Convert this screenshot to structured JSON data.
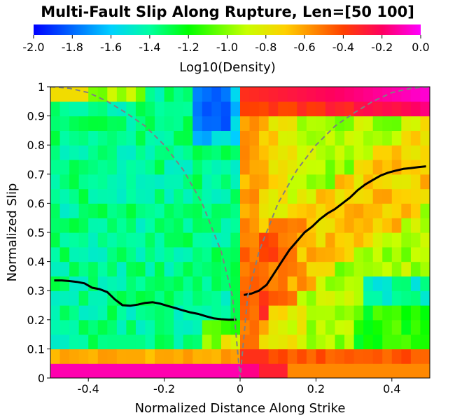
{
  "chart_data": {
    "type": "heatmap",
    "title": "Multi-Fault Slip Along Rupture, Len=[50 100]",
    "xlabel": "Normalized Distance Along Strike",
    "ylabel": "Normalized Slip",
    "colorbar": {
      "label": "Log10(Density)",
      "range": [
        -2.0,
        0.0
      ],
      "ticks": [
        "-2.0",
        "-1.8",
        "-1.6",
        "-1.4",
        "-1.2",
        "-1.0",
        "-0.8",
        "-0.6",
        "-0.4",
        "-0.2",
        "0.0"
      ],
      "colormap": "jet-like blue-cyan-green-yellow-red-magenta"
    },
    "x_ticks": [
      "-0.4",
      "-0.2",
      "0",
      "0.2",
      "0.4"
    ],
    "y_ticks": [
      "0",
      "0.1",
      "0.2",
      "0.3",
      "0.4",
      "0.5",
      "0.6",
      "0.7",
      "0.8",
      "0.9",
      "1"
    ],
    "xlim": [
      -0.5,
      0.5
    ],
    "ylim": [
      0,
      1
    ],
    "grid": false,
    "heatmap_grid": {
      "x_bins": 40,
      "y_bins": 20,
      "x_range": [
        -0.5,
        0.5
      ],
      "y_range": [
        0,
        1
      ]
    },
    "heatmap_regions": [
      {
        "description": "bottom row slip 0-0.05",
        "left_value": -0.1,
        "right_value": -0.3
      },
      {
        "description": "slip 0.05-0.1",
        "left_value": -0.6,
        "right_value": -0.4
      },
      {
        "description": "left side interior",
        "value": -1.4
      },
      {
        "description": "right side near center",
        "value": -0.6
      },
      {
        "description": "right side far",
        "value": -0.9
      },
      {
        "description": "top right corner",
        "value": -0.2
      },
      {
        "description": "top left corner near center",
        "value": -1.8
      }
    ],
    "series": [
      {
        "name": "mean slip",
        "color": "#000000",
        "style": "solid",
        "x": [
          -0.49,
          -0.47,
          -0.45,
          -0.43,
          -0.41,
          -0.39,
          -0.37,
          -0.35,
          -0.33,
          -0.31,
          -0.29,
          -0.27,
          -0.25,
          -0.23,
          -0.21,
          -0.19,
          -0.17,
          -0.15,
          -0.13,
          -0.11,
          -0.09,
          -0.07,
          -0.05,
          -0.03,
          -0.01
        ],
        "y": [
          0.335,
          0.335,
          0.333,
          0.33,
          0.325,
          0.31,
          0.305,
          0.295,
          0.27,
          0.25,
          0.248,
          0.252,
          0.258,
          0.26,
          0.255,
          0.247,
          0.24,
          0.232,
          0.225,
          0.22,
          0.212,
          0.205,
          0.202,
          0.2,
          0.2
        ]
      },
      {
        "name": "mean slip",
        "color": "#000000",
        "style": "solid",
        "x": [
          0.01,
          0.03,
          0.05,
          0.07,
          0.09,
          0.11,
          0.13,
          0.15,
          0.17,
          0.19,
          0.21,
          0.23,
          0.25,
          0.27,
          0.29,
          0.31,
          0.33,
          0.35,
          0.37,
          0.39,
          0.41,
          0.43,
          0.45,
          0.47,
          0.49
        ],
        "y": [
          0.285,
          0.29,
          0.3,
          0.32,
          0.36,
          0.4,
          0.44,
          0.47,
          0.5,
          0.52,
          0.545,
          0.565,
          0.58,
          0.6,
          0.62,
          0.645,
          0.665,
          0.68,
          0.695,
          0.705,
          0.712,
          0.718,
          0.721,
          0.724,
          0.727
        ]
      },
      {
        "name": "reference curve",
        "color": "#808080",
        "style": "dashed",
        "x": [
          -0.5,
          -0.45,
          -0.4,
          -0.35,
          -0.3,
          -0.25,
          -0.2,
          -0.15,
          -0.1,
          -0.05,
          -0.02,
          0,
          0.02,
          0.05,
          0.1,
          0.15,
          0.2,
          0.25,
          0.3,
          0.35,
          0.4,
          0.45,
          0.5
        ],
        "y": [
          1.0,
          0.995,
          0.98,
          0.95,
          0.91,
          0.865,
          0.8,
          0.715,
          0.6,
          0.435,
          0.28,
          0.0,
          0.28,
          0.435,
          0.6,
          0.715,
          0.8,
          0.865,
          0.91,
          0.95,
          0.98,
          0.995,
          1.0
        ]
      }
    ]
  }
}
